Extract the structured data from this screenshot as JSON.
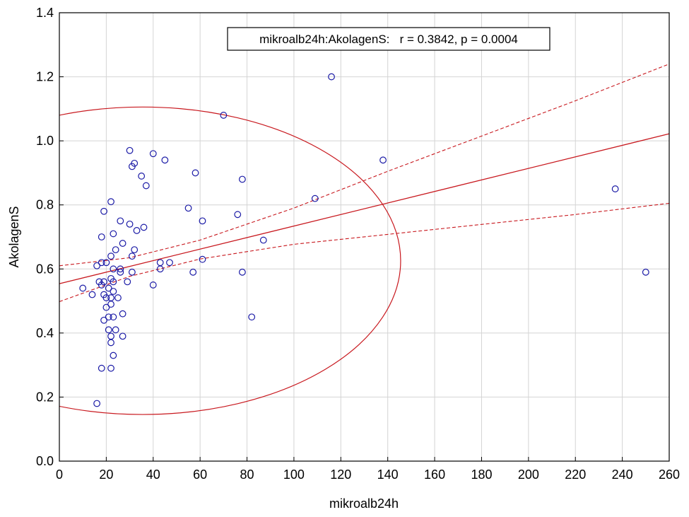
{
  "chart_data": {
    "type": "scatter",
    "title": "",
    "xlabel": "mikroalb24h",
    "ylabel": "AkolagenS",
    "xlim": [
      0,
      260
    ],
    "ylim": [
      0,
      1.4
    ],
    "x_ticks": [
      "0",
      "20",
      "40",
      "60",
      "80",
      "100",
      "120",
      "140",
      "160",
      "180",
      "200",
      "220",
      "240",
      "260"
    ],
    "y_ticks": [
      "0.0",
      "0.2",
      "0.4",
      "0.6",
      "0.8",
      "1.0",
      "1.2",
      "1.4"
    ],
    "grid": true,
    "annotation": "mikroalb24h:AkolagenS:   r = 0.3842, p = 0.0004",
    "colors": {
      "points": "#1a1aa6",
      "lines": "#c8181e",
      "grid": "#d4d4d4"
    },
    "points": [
      [
        10,
        0.54
      ],
      [
        14,
        0.52
      ],
      [
        16,
        0.18
      ],
      [
        16,
        0.61
      ],
      [
        17,
        0.56
      ],
      [
        18,
        0.29
      ],
      [
        18,
        0.55
      ],
      [
        18,
        0.62
      ],
      [
        18,
        0.7
      ],
      [
        19,
        0.44
      ],
      [
        19,
        0.52
      ],
      [
        19,
        0.56
      ],
      [
        19,
        0.78
      ],
      [
        20,
        0.48
      ],
      [
        20,
        0.51
      ],
      [
        20,
        0.62
      ],
      [
        21,
        0.41
      ],
      [
        21,
        0.45
      ],
      [
        21,
        0.54
      ],
      [
        22,
        0.29
      ],
      [
        22,
        0.37
      ],
      [
        22,
        0.39
      ],
      [
        22,
        0.49
      ],
      [
        22,
        0.51
      ],
      [
        22,
        0.57
      ],
      [
        22,
        0.64
      ],
      [
        22,
        0.81
      ],
      [
        23,
        0.33
      ],
      [
        23,
        0.45
      ],
      [
        23,
        0.53
      ],
      [
        23,
        0.56
      ],
      [
        23,
        0.6
      ],
      [
        23,
        0.71
      ],
      [
        24,
        0.41
      ],
      [
        24,
        0.66
      ],
      [
        25,
        0.51
      ],
      [
        26,
        0.59
      ],
      [
        26,
        0.6
      ],
      [
        26,
        0.75
      ],
      [
        27,
        0.39
      ],
      [
        27,
        0.46
      ],
      [
        27,
        0.68
      ],
      [
        29,
        0.56
      ],
      [
        30,
        0.74
      ],
      [
        30,
        0.97
      ],
      [
        31,
        0.64
      ],
      [
        31,
        0.92
      ],
      [
        31,
        0.59
      ],
      [
        32,
        0.93
      ],
      [
        32,
        0.66
      ],
      [
        33,
        0.72
      ],
      [
        35,
        0.89
      ],
      [
        36,
        0.73
      ],
      [
        37,
        0.86
      ],
      [
        40,
        0.55
      ],
      [
        40,
        0.96
      ],
      [
        43,
        0.6
      ],
      [
        43,
        0.62
      ],
      [
        45,
        0.94
      ],
      [
        47,
        0.62
      ],
      [
        55,
        0.79
      ],
      [
        57,
        0.59
      ],
      [
        58,
        0.9
      ],
      [
        61,
        0.75
      ],
      [
        61,
        0.63
      ],
      [
        70,
        1.08
      ],
      [
        76,
        0.77
      ],
      [
        78,
        0.59
      ],
      [
        78,
        0.88
      ],
      [
        82,
        0.45
      ],
      [
        87,
        0.69
      ],
      [
        109,
        0.82
      ],
      [
        116,
        1.2
      ],
      [
        138,
        0.94
      ],
      [
        237,
        0.85
      ],
      [
        250,
        0.59
      ]
    ],
    "regression": {
      "intercept": 0.554,
      "slope": 0.0018
    },
    "confidence_band": {
      "x": [
        0,
        30,
        60,
        100,
        140,
        180,
        220,
        260
      ],
      "upper": [
        0.61,
        0.635,
        0.69,
        0.79,
        0.905,
        1.015,
        1.125,
        1.24
      ],
      "lower": [
        0.498,
        0.577,
        0.631,
        0.677,
        0.708,
        0.739,
        0.77,
        0.805
      ]
    },
    "ellipse": {
      "center": [
        35.5,
        0.6256
      ],
      "semi_axes": [
        110,
        0.48
      ],
      "rotation_deg": 0
    }
  }
}
